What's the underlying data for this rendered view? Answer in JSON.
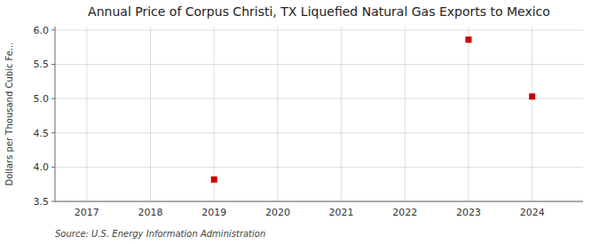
{
  "chart_data": {
    "type": "scatter",
    "title": "Annual Price of Corpus Christi, TX Liquefied Natural Gas Exports to Mexico",
    "ylabel": "Dollars per Thousand Cubic Fe...",
    "source": "Source: U.S. Energy Information Administration",
    "x": [
      2019,
      2023,
      2024
    ],
    "values": [
      3.82,
      5.86,
      5.03
    ],
    "color": "#cc0000",
    "marker": "square",
    "xlim": [
      2016.5,
      2024.8
    ],
    "ylim": [
      3.5,
      6.05
    ],
    "xticks": [
      2017,
      2018,
      2019,
      2020,
      2021,
      2022,
      2023,
      2024
    ],
    "yticks": [
      3.5,
      {
        "value": 4.0,
        "label": "4.0"
      },
      4.5,
      {
        "value": 5.0,
        "label": "5.0"
      },
      5.5,
      {
        "value": 6.0,
        "label": "6.0"
      }
    ],
    "grid": true
  }
}
